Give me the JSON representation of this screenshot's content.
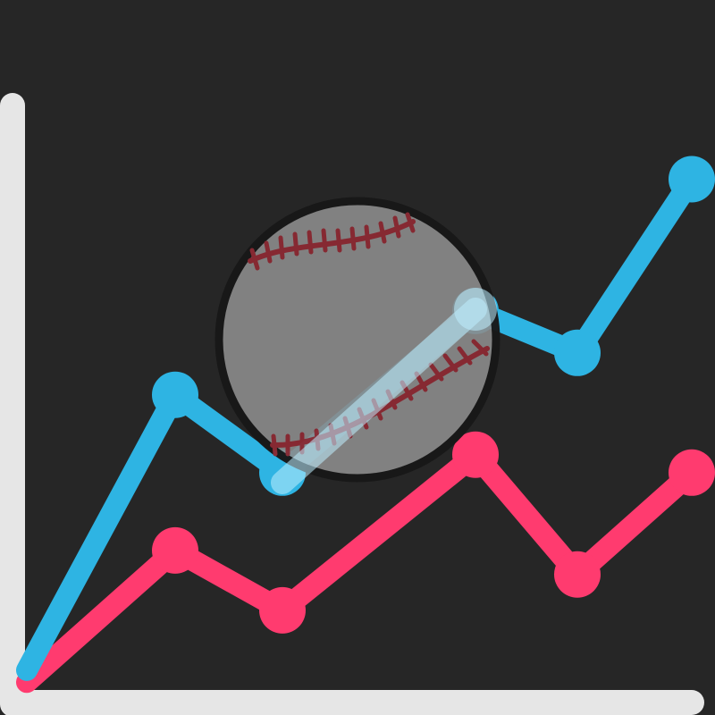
{
  "colors": {
    "background": "#262626",
    "axis": "#e6e6e6",
    "series_blue": "#2eb4e3",
    "series_pink": "#ff3b6f",
    "ball_fill": "#8c8c8c",
    "ball_outline": "#181818",
    "stitch": "#8a2a33"
  },
  "icons": {
    "ball": "baseball-icon"
  },
  "chart_data": {
    "type": "line",
    "x": [
      0,
      1,
      2,
      3,
      4,
      5,
      6
    ],
    "ylim": [
      0,
      10
    ],
    "xlim": [
      0,
      6.5
    ],
    "grid": false,
    "series": [
      {
        "color": "#2eb4e3",
        "values": [
          0.3,
          4.9,
          3.6,
          6.3,
          5.6,
          8.5,
          null
        ]
      },
      {
        "color": "#ff3b6f",
        "values": [
          0.1,
          2.3,
          1.3,
          3.9,
          1.9,
          3.6,
          null
        ]
      }
    ]
  }
}
